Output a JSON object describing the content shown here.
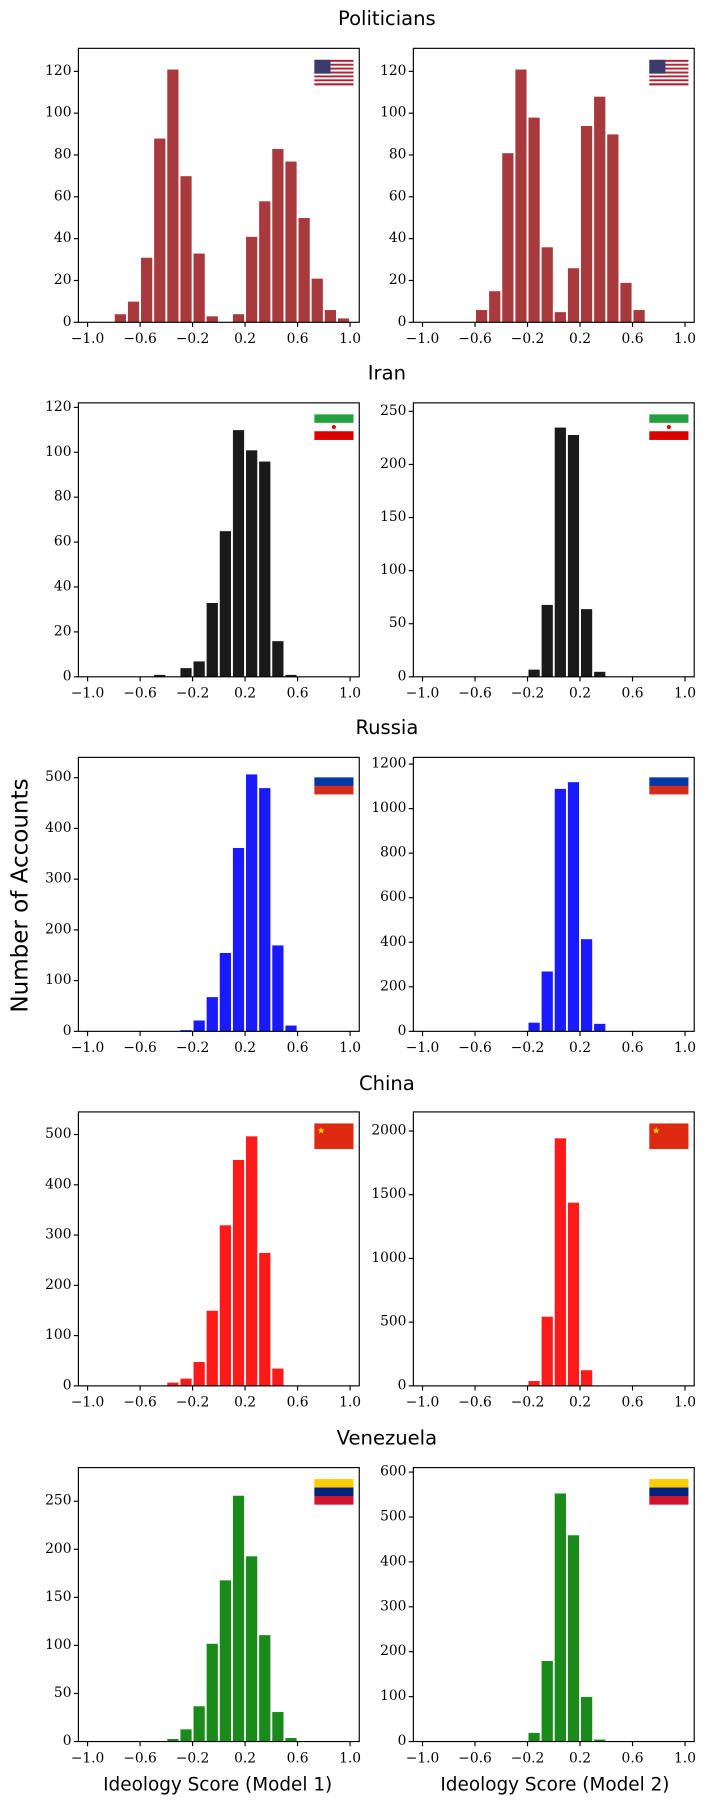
{
  "figure": {
    "row_titles": [
      "Politicians",
      "Iran",
      "Russia",
      "China",
      "Venezuela"
    ],
    "ylabel": "Number of Accounts",
    "xlabels": [
      "Ideology Score (Model 1)",
      "Ideology Score (Model 2)"
    ]
  },
  "chart_data": [
    {
      "type": "histogram",
      "color": "#a83a3e",
      "bins": [
        -1,
        -0.9,
        -0.8,
        -0.7,
        -0.6,
        -0.5,
        -0.4,
        -0.3,
        -0.2,
        -0.1,
        0,
        0.1,
        0.2,
        0.3,
        0.4,
        0.5,
        0.6,
        0.7,
        0.8,
        0.9,
        1
      ],
      "values": [
        0,
        0,
        4,
        10,
        31,
        88,
        121,
        70,
        33,
        3,
        0,
        4,
        41,
        58,
        83,
        77,
        50,
        21,
        6,
        2
      ],
      "xlim": [
        -1.07,
        1.07
      ],
      "xticks": [
        {
          "value": -1,
          "label": "−1.0"
        },
        {
          "value": -0.6,
          "label": "−0.6"
        },
        {
          "value": -0.2,
          "label": "−0.2"
        },
        0.2,
        0.6,
        {
          "value": 1,
          "label": "1.0"
        }
      ],
      "ylim": [
        0,
        131
      ],
      "yticks": [
        0,
        20,
        40,
        60,
        80,
        100,
        120
      ]
    },
    {
      "type": "histogram",
      "color": "#a83a3e",
      "bins": [
        -1,
        -0.9,
        -0.8,
        -0.7,
        -0.6,
        -0.5,
        -0.4,
        -0.3,
        -0.2,
        -0.1,
        0,
        0.1,
        0.2,
        0.3,
        0.4,
        0.5,
        0.6,
        0.7,
        0.8,
        0.9,
        1
      ],
      "values": [
        0,
        0,
        0,
        0,
        6,
        15,
        81,
        121,
        98,
        36,
        5,
        26,
        94,
        108,
        90,
        19,
        6,
        0,
        0,
        0
      ],
      "xlim": [
        -1.07,
        1.07
      ],
      "xticks": [
        {
          "value": -1,
          "label": "−1.0"
        },
        {
          "value": -0.6,
          "label": "−0.6"
        },
        {
          "value": -0.2,
          "label": "−0.2"
        },
        0.2,
        0.6,
        {
          "value": 1,
          "label": "1.0"
        }
      ],
      "ylim": [
        0,
        131
      ],
      "yticks": [
        0,
        20,
        40,
        60,
        80,
        100,
        120
      ]
    },
    {
      "type": "histogram",
      "color": "#1a1a1a",
      "bins": [
        -1,
        -0.9,
        -0.8,
        -0.7,
        -0.6,
        -0.5,
        -0.4,
        -0.3,
        -0.2,
        -0.1,
        0,
        0.1,
        0.2,
        0.3,
        0.4,
        0.5,
        0.6,
        0.7,
        0.8,
        0.9,
        1
      ],
      "values": [
        0,
        0,
        0,
        0,
        0,
        1,
        0,
        4,
        7,
        33,
        65,
        110,
        101,
        96,
        16,
        1,
        0,
        0,
        0,
        0
      ],
      "xlim": [
        -1.07,
        1.07
      ],
      "xticks": [
        {
          "value": -1,
          "label": "−1.0"
        },
        {
          "value": -0.6,
          "label": "−0.6"
        },
        {
          "value": -0.2,
          "label": "−0.2"
        },
        0.2,
        0.6,
        {
          "value": 1,
          "label": "1.0"
        }
      ],
      "ylim": [
        0,
        122
      ],
      "yticks": [
        0,
        20,
        40,
        60,
        80,
        100,
        120
      ]
    },
    {
      "type": "histogram",
      "color": "#1a1a1a",
      "bins": [
        -1,
        -0.9,
        -0.8,
        -0.7,
        -0.6,
        -0.5,
        -0.4,
        -0.3,
        -0.2,
        -0.1,
        0,
        0.1,
        0.2,
        0.3,
        0.4,
        0.5,
        0.6,
        0.7,
        0.8,
        0.9,
        1
      ],
      "values": [
        0,
        0,
        0,
        0,
        0,
        0,
        0,
        0,
        7,
        68,
        235,
        228,
        64,
        5,
        0,
        0,
        0,
        0,
        0,
        0
      ],
      "xlim": [
        -1.07,
        1.07
      ],
      "xticks": [
        {
          "value": -1,
          "label": "−1.0"
        },
        {
          "value": -0.6,
          "label": "−0.6"
        },
        {
          "value": -0.2,
          "label": "−0.2"
        },
        0.2,
        0.6,
        {
          "value": 1,
          "label": "1.0"
        }
      ],
      "ylim": [
        0,
        258
      ],
      "yticks": [
        0,
        50,
        100,
        150,
        200,
        250
      ]
    },
    {
      "type": "histogram",
      "color": "#1a1aff",
      "bins": [
        -1,
        -0.9,
        -0.8,
        -0.7,
        -0.6,
        -0.5,
        -0.4,
        -0.3,
        -0.2,
        -0.1,
        0,
        0.1,
        0.2,
        0.3,
        0.4,
        0.5,
        0.6,
        0.7,
        0.8,
        0.9,
        1
      ],
      "values": [
        0,
        0,
        0,
        0,
        0,
        0,
        0,
        3,
        22,
        68,
        155,
        362,
        507,
        480,
        170,
        12,
        0,
        0,
        0,
        0
      ],
      "xlim": [
        -1.07,
        1.07
      ],
      "xticks": [
        {
          "value": -1,
          "label": "−1.0"
        },
        {
          "value": -0.6,
          "label": "−0.6"
        },
        {
          "value": -0.2,
          "label": "−0.2"
        },
        0.2,
        0.6,
        {
          "value": 1,
          "label": "1.0"
        }
      ],
      "ylim": [
        0,
        540
      ],
      "yticks": [
        0,
        100,
        200,
        300,
        400,
        500
      ]
    },
    {
      "type": "histogram",
      "color": "#1a1aff",
      "bins": [
        -1,
        -0.9,
        -0.8,
        -0.7,
        -0.6,
        -0.5,
        -0.4,
        -0.3,
        -0.2,
        -0.1,
        0,
        0.1,
        0.2,
        0.3,
        0.4,
        0.5,
        0.6,
        0.7,
        0.8,
        0.9,
        1
      ],
      "values": [
        0,
        0,
        0,
        0,
        0,
        0,
        0,
        0,
        40,
        270,
        1090,
        1120,
        415,
        35,
        0,
        0,
        0,
        0,
        0,
        0
      ],
      "xlim": [
        -1.07,
        1.07
      ],
      "xticks": [
        {
          "value": -1,
          "label": "−1.0"
        },
        {
          "value": -0.6,
          "label": "−0.6"
        },
        {
          "value": -0.2,
          "label": "−0.2"
        },
        0.2,
        0.6,
        {
          "value": 1,
          "label": "1.0"
        }
      ],
      "ylim": [
        0,
        1230
      ],
      "yticks": [
        0,
        200,
        400,
        600,
        800,
        1000,
        1200
      ]
    },
    {
      "type": "histogram",
      "color": "#ff1a1a",
      "bins": [
        -1,
        -0.9,
        -0.8,
        -0.7,
        -0.6,
        -0.5,
        -0.4,
        -0.3,
        -0.2,
        -0.1,
        0,
        0.1,
        0.2,
        0.3,
        0.4,
        0.5,
        0.6,
        0.7,
        0.8,
        0.9,
        1
      ],
      "values": [
        0,
        0,
        0,
        0,
        0,
        0,
        7,
        15,
        48,
        150,
        320,
        450,
        497,
        265,
        35,
        0,
        0,
        0,
        0,
        0
      ],
      "xlim": [
        -1.07,
        1.07
      ],
      "xticks": [
        {
          "value": -1,
          "label": "−1.0"
        },
        {
          "value": -0.6,
          "label": "−0.6"
        },
        {
          "value": -0.2,
          "label": "−0.2"
        },
        0.2,
        0.6,
        {
          "value": 1,
          "label": "1.0"
        }
      ],
      "ylim": [
        0,
        545
      ],
      "yticks": [
        0,
        100,
        200,
        300,
        400,
        500
      ]
    },
    {
      "type": "histogram",
      "color": "#ff1a1a",
      "bins": [
        -1,
        -0.9,
        -0.8,
        -0.7,
        -0.6,
        -0.5,
        -0.4,
        -0.3,
        -0.2,
        -0.1,
        0,
        0.1,
        0.2,
        0.3,
        0.4,
        0.5,
        0.6,
        0.7,
        0.8,
        0.9,
        1
      ],
      "values": [
        0,
        0,
        0,
        0,
        0,
        0,
        0,
        0,
        40,
        545,
        1945,
        1440,
        125,
        0,
        0,
        0,
        0,
        0,
        0,
        0
      ],
      "xlim": [
        -1.07,
        1.07
      ],
      "xticks": [
        {
          "value": -1,
          "label": "−1.0"
        },
        {
          "value": -0.6,
          "label": "−0.6"
        },
        {
          "value": -0.2,
          "label": "−0.2"
        },
        0.2,
        0.6,
        {
          "value": 1,
          "label": "1.0"
        }
      ],
      "ylim": [
        0,
        2150
      ],
      "yticks": [
        0,
        500,
        1000,
        1500,
        2000
      ]
    },
    {
      "type": "histogram",
      "color": "#1a8a1a",
      "bins": [
        -1,
        -0.9,
        -0.8,
        -0.7,
        -0.6,
        -0.5,
        -0.4,
        -0.3,
        -0.2,
        -0.1,
        0,
        0.1,
        0.2,
        0.3,
        0.4,
        0.5,
        0.6,
        0.7,
        0.8,
        0.9,
        1
      ],
      "values": [
        0,
        0,
        0,
        0,
        0,
        0,
        3,
        13,
        37,
        102,
        168,
        256,
        193,
        111,
        31,
        4,
        0,
        0,
        0,
        0
      ],
      "xlim": [
        -1.07,
        1.07
      ],
      "xticks": [
        {
          "value": -1,
          "label": "−1.0"
        },
        {
          "value": -0.6,
          "label": "−0.6"
        },
        {
          "value": -0.2,
          "label": "−0.2"
        },
        0.2,
        0.6,
        {
          "value": 1,
          "label": "1.0"
        }
      ],
      "ylim": [
        0,
        285
      ],
      "yticks": [
        0,
        50,
        100,
        150,
        200,
        250
      ]
    },
    {
      "type": "histogram",
      "color": "#1a8a1a",
      "bins": [
        -1,
        -0.9,
        -0.8,
        -0.7,
        -0.6,
        -0.5,
        -0.4,
        -0.3,
        -0.2,
        -0.1,
        0,
        0.1,
        0.2,
        0.3,
        0.4,
        0.5,
        0.6,
        0.7,
        0.8,
        0.9,
        1
      ],
      "values": [
        0,
        0,
        0,
        0,
        0,
        0,
        0,
        0,
        20,
        180,
        553,
        460,
        100,
        5,
        0,
        0,
        0,
        0,
        0,
        0
      ],
      "xlim": [
        -1.07,
        1.07
      ],
      "xticks": [
        {
          "value": -1,
          "label": "−1.0"
        },
        {
          "value": -0.6,
          "label": "−0.6"
        },
        {
          "value": -0.2,
          "label": "−0.2"
        },
        0.2,
        0.6,
        {
          "value": 1,
          "label": "1.0"
        }
      ],
      "ylim": [
        0,
        610
      ],
      "yticks": [
        0,
        100,
        200,
        300,
        400,
        500,
        600
      ]
    }
  ]
}
